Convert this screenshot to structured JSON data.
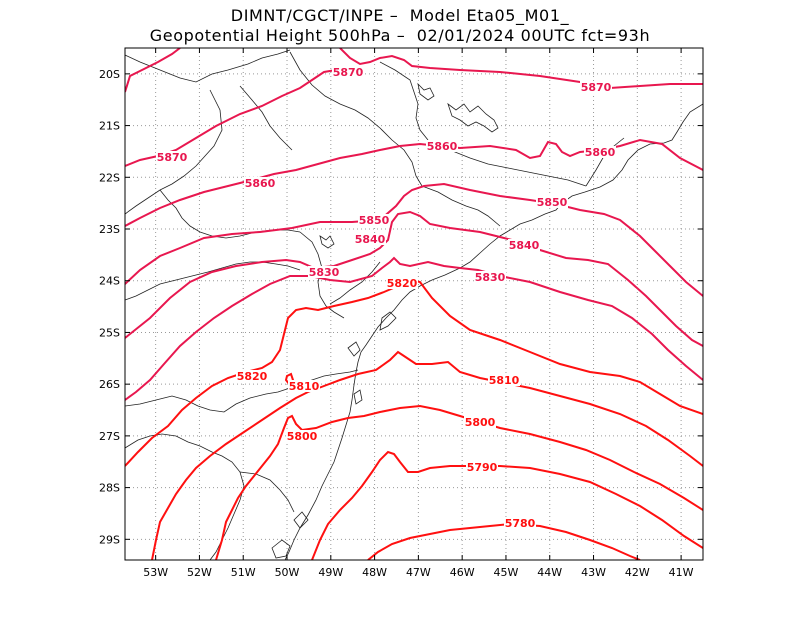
{
  "title": {
    "line1": "DIMNT/CGCT/INPE –  Model Eta05_M01_",
    "line2": "Geopotential Height 500hPa –  02/01/2024 00UTC fct=93h"
  },
  "map": {
    "lon_range": [
      -53.7,
      -40.5
    ],
    "lat_range": [
      -29.4,
      -19.5
    ],
    "lat_ticks": [
      "20S",
      "21S",
      "22S",
      "23S",
      "24S",
      "25S",
      "26S",
      "27S",
      "28S",
      "29S"
    ],
    "lon_ticks": [
      "53W",
      "52W",
      "51W",
      "50W",
      "49W",
      "48W",
      "47W",
      "46W",
      "45W",
      "44W",
      "43W",
      "42W",
      "41W"
    ],
    "grid": true,
    "contour_color_high": "#e8174f",
    "contour_color_low": "#ff1010"
  },
  "contour_labels": [
    {
      "value": "5870"
    },
    {
      "value": "5870"
    },
    {
      "value": "5870"
    },
    {
      "value": "5860"
    },
    {
      "value": "5860"
    },
    {
      "value": "5860"
    },
    {
      "value": "5850"
    },
    {
      "value": "5850"
    },
    {
      "value": "5840"
    },
    {
      "value": "5840"
    },
    {
      "value": "5830"
    },
    {
      "value": "5830"
    },
    {
      "value": "5820"
    },
    {
      "value": "5820"
    },
    {
      "value": "5810"
    },
    {
      "value": "5810"
    },
    {
      "value": "5800"
    },
    {
      "value": "5800"
    },
    {
      "value": "5790"
    },
    {
      "value": "5780"
    }
  ]
}
